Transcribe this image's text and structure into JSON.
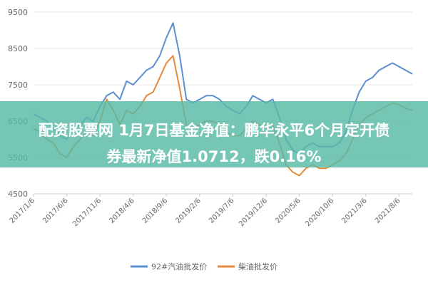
{
  "chart_data": {
    "type": "line",
    "title": "",
    "xlabel": "",
    "ylabel": "",
    "ylim": [
      4500,
      9500
    ],
    "yticks": [
      4500,
      5500,
      6500,
      7500,
      8500,
      9500
    ],
    "grid": true,
    "legend_position": "bottom",
    "x_start": "2017-01",
    "x_end": "2021-10",
    "xticks": [
      {
        "label": "2017/1/6",
        "date": "2017-01"
      },
      {
        "label": "2017/6/6",
        "date": "2017-06"
      },
      {
        "label": "2017/11/6",
        "date": "2017-11"
      },
      {
        "label": "2018/4/6",
        "date": "2018-04"
      },
      {
        "label": "2018/9/6",
        "date": "2018-09"
      },
      {
        "label": "2019/2/6",
        "date": "2019-02"
      },
      {
        "label": "2019/7/6",
        "date": "2019-07"
      },
      {
        "label": "2019/12/6",
        "date": "2019-12"
      },
      {
        "label": "2020/5/6",
        "date": "2020-05"
      },
      {
        "label": "2020/10/6",
        "date": "2020-10"
      },
      {
        "label": "2021/3/6",
        "date": "2021-03"
      },
      {
        "label": "2021/8/6",
        "date": "2021-08"
      }
    ],
    "series": [
      {
        "name": "92#汽油批发价",
        "color": "#5b8fd0",
        "points": [
          [
            "2017-01",
            6700
          ],
          [
            "2017-02",
            6600
          ],
          [
            "2017-03",
            6500
          ],
          [
            "2017-04",
            6300
          ],
          [
            "2017-05",
            6100
          ],
          [
            "2017-06",
            6000
          ],
          [
            "2017-07",
            6300
          ],
          [
            "2017-08",
            6400
          ],
          [
            "2017-09",
            6600
          ],
          [
            "2017-10",
            6500
          ],
          [
            "2017-11",
            6900
          ],
          [
            "2017-12",
            7200
          ],
          [
            "2018-01",
            7300
          ],
          [
            "2018-02",
            7100
          ],
          [
            "2018-03",
            7600
          ],
          [
            "2018-04",
            7500
          ],
          [
            "2018-05",
            7700
          ],
          [
            "2018-06",
            7900
          ],
          [
            "2018-07",
            8000
          ],
          [
            "2018-08",
            8300
          ],
          [
            "2018-09",
            8800
          ],
          [
            "2018-10",
            9200
          ],
          [
            "2018-11",
            8300
          ],
          [
            "2018-12",
            7100
          ],
          [
            "2019-01",
            7000
          ],
          [
            "2019-02",
            7100
          ],
          [
            "2019-03",
            7200
          ],
          [
            "2019-04",
            7200
          ],
          [
            "2019-05",
            7100
          ],
          [
            "2019-06",
            6900
          ],
          [
            "2019-07",
            6800
          ],
          [
            "2019-08",
            6700
          ],
          [
            "2019-09",
            6900
          ],
          [
            "2019-10",
            7200
          ],
          [
            "2019-11",
            7100
          ],
          [
            "2019-12",
            7000
          ],
          [
            "2020-01",
            7100
          ],
          [
            "2020-02",
            6600
          ],
          [
            "2020-03",
            6000
          ],
          [
            "2020-04",
            5700
          ],
          [
            "2020-05",
            5600
          ],
          [
            "2020-06",
            5800
          ],
          [
            "2020-07",
            5900
          ],
          [
            "2020-08",
            5800
          ],
          [
            "2020-09",
            5800
          ],
          [
            "2020-10",
            5800
          ],
          [
            "2020-11",
            5900
          ],
          [
            "2020-12",
            6200
          ],
          [
            "2021-01",
            6800
          ],
          [
            "2021-02",
            7300
          ],
          [
            "2021-03",
            7600
          ],
          [
            "2021-04",
            7700
          ],
          [
            "2021-05",
            7900
          ],
          [
            "2021-06",
            8000
          ],
          [
            "2021-07",
            8100
          ],
          [
            "2021-08",
            8000
          ],
          [
            "2021-09",
            7900
          ],
          [
            "2021-10",
            7800
          ]
        ]
      },
      {
        "name": "柴油批发价",
        "color": "#e38a3c",
        "points": [
          [
            "2017-01",
            6300
          ],
          [
            "2017-02",
            6200
          ],
          [
            "2017-03",
            6000
          ],
          [
            "2017-04",
            5900
          ],
          [
            "2017-05",
            5600
          ],
          [
            "2017-06",
            5500
          ],
          [
            "2017-07",
            5800
          ],
          [
            "2017-08",
            6000
          ],
          [
            "2017-09",
            6200
          ],
          [
            "2017-10",
            6100
          ],
          [
            "2017-11",
            6500
          ],
          [
            "2017-12",
            7100
          ],
          [
            "2018-01",
            6800
          ],
          [
            "2018-02",
            6400
          ],
          [
            "2018-03",
            6800
          ],
          [
            "2018-04",
            6700
          ],
          [
            "2018-05",
            6900
          ],
          [
            "2018-06",
            7200
          ],
          [
            "2018-07",
            7300
          ],
          [
            "2018-08",
            7700
          ],
          [
            "2018-09",
            8100
          ],
          [
            "2018-10",
            8300
          ],
          [
            "2018-11",
            7400
          ],
          [
            "2018-12",
            6400
          ],
          [
            "2019-01",
            6300
          ],
          [
            "2019-02",
            6400
          ],
          [
            "2019-03",
            6500
          ],
          [
            "2019-04",
            6500
          ],
          [
            "2019-05",
            6400
          ],
          [
            "2019-06",
            6200
          ],
          [
            "2019-07",
            6100
          ],
          [
            "2019-08",
            6100
          ],
          [
            "2019-09",
            6300
          ],
          [
            "2019-10",
            6500
          ],
          [
            "2019-11",
            6400
          ],
          [
            "2019-12",
            6300
          ],
          [
            "2020-01",
            6400
          ],
          [
            "2020-02",
            5900
          ],
          [
            "2020-03",
            5300
          ],
          [
            "2020-04",
            5100
          ],
          [
            "2020-05",
            5000
          ],
          [
            "2020-06",
            5200
          ],
          [
            "2020-07",
            5300
          ],
          [
            "2020-08",
            5200
          ],
          [
            "2020-09",
            5200
          ],
          [
            "2020-10",
            5300
          ],
          [
            "2020-11",
            5400
          ],
          [
            "2020-12",
            5600
          ],
          [
            "2021-01",
            6000
          ],
          [
            "2021-02",
            6400
          ],
          [
            "2021-03",
            6600
          ],
          [
            "2021-04",
            6700
          ],
          [
            "2021-05",
            6800
          ],
          [
            "2021-06",
            6900
          ],
          [
            "2021-07",
            7000
          ],
          [
            "2021-08",
            6950
          ],
          [
            "2021-09",
            6850
          ],
          [
            "2021-10",
            6800
          ]
        ]
      }
    ]
  },
  "overlay": {
    "line1": "配资股票网 1月7日基金净值：鹏华永平6个月定开债",
    "line2": "券最新净值1.0712，跌0.16%"
  }
}
